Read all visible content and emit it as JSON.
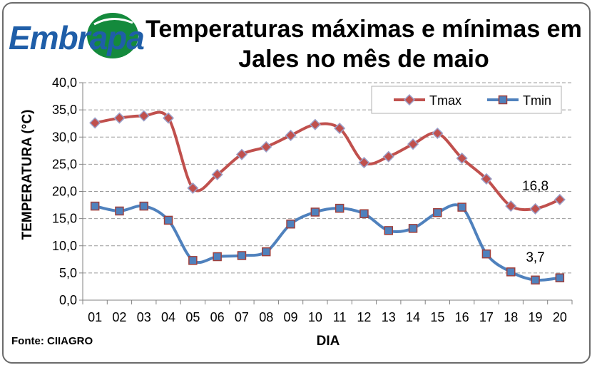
{
  "header": {
    "logo_text": "Embrapa",
    "title": "Temperaturas máximas e mínimas em Jales no mês de maio"
  },
  "footer": {
    "source": "Fonte: CIIAGRO"
  },
  "colors": {
    "tmax_line": "#c0504d",
    "tmax_marker_fill": "#c0504d",
    "tmax_marker_edge": "#9a9fc8",
    "tmin_line": "#4f81bd",
    "tmin_marker_fill": "#4f81bd",
    "tmin_marker_edge": "#a0403c",
    "grid": "#9a9a9a",
    "logo_blue": "#1f5ea8",
    "logo_green": "#148a3c"
  },
  "chart_data": {
    "type": "line",
    "title": "Temperaturas máximas e mínimas em Jales no mês de maio",
    "xlabel": "DIA",
    "ylabel": "TEMPERATURA (°C)",
    "categories": [
      "01",
      "02",
      "03",
      "04",
      "05",
      "06",
      "07",
      "08",
      "09",
      "10",
      "11",
      "12",
      "13",
      "14",
      "15",
      "16",
      "17",
      "18",
      "19",
      "20"
    ],
    "ylim": [
      0,
      40
    ],
    "yticks": [
      "0,0",
      "5,0",
      "10,0",
      "15,0",
      "20,0",
      "25,0",
      "30,0",
      "35,0",
      "40,0"
    ],
    "ytick_values": [
      0,
      5,
      10,
      15,
      20,
      25,
      30,
      35,
      40
    ],
    "grid": "horizontal dashed",
    "legend_position": "top-right",
    "series": [
      {
        "name": "Tmax",
        "marker": "diamond",
        "values": [
          32.6,
          33.5,
          33.9,
          33.5,
          20.6,
          23.1,
          26.8,
          28.2,
          30.3,
          32.3,
          31.6,
          25.3,
          26.4,
          28.7,
          30.7,
          26.1,
          22.3,
          17.3,
          16.8,
          18.5
        ]
      },
      {
        "name": "Tmin",
        "marker": "square",
        "values": [
          17.3,
          16.4,
          17.3,
          14.7,
          7.3,
          8.0,
          8.2,
          8.9,
          14.0,
          16.2,
          16.9,
          15.9,
          12.8,
          13.2,
          16.1,
          17.1,
          8.5,
          5.2,
          3.7,
          4.1
        ]
      }
    ],
    "annotations": [
      {
        "text": "16,8",
        "series": "Tmax",
        "x": "19"
      },
      {
        "text": "3,7",
        "series": "Tmin",
        "x": "19"
      }
    ]
  }
}
